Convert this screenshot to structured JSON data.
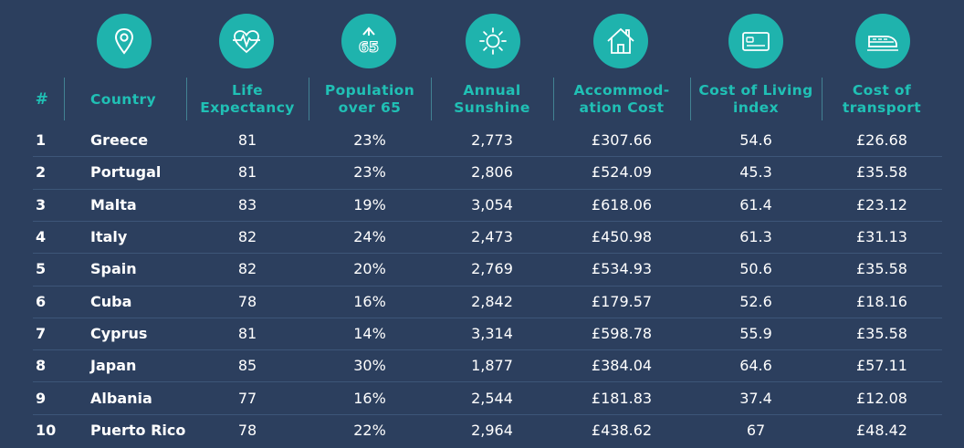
{
  "chart_data": {
    "type": "table",
    "columns": [
      "#",
      "Country",
      "Life Expectancy",
      "Population over 65",
      "Annual Sunshine",
      "Accommod-ation Cost",
      "Cost of Living index",
      "Cost of transport"
    ],
    "header_icons": [
      "location-pin-icon",
      "heartbeat-icon",
      "over-65-icon",
      "sun-icon",
      "house-icon",
      "credit-card-icon",
      "train-icon"
    ],
    "rows": [
      [
        "1",
        "Greece",
        "81",
        "23%",
        "2,773",
        "£307.66",
        "54.6",
        "£26.68"
      ],
      [
        "2",
        "Portugal",
        "81",
        "23%",
        "2,806",
        "£524.09",
        "45.3",
        "£35.58"
      ],
      [
        "3",
        "Malta",
        "83",
        "19%",
        "3,054",
        "£618.06",
        "61.4",
        "£23.12"
      ],
      [
        "4",
        "Italy",
        "82",
        "24%",
        "2,473",
        "£450.98",
        "61.3",
        "£31.13"
      ],
      [
        "5",
        "Spain",
        "82",
        "20%",
        "2,769",
        "£534.93",
        "50.6",
        "£35.58"
      ],
      [
        "6",
        "Cuba",
        "78",
        "16%",
        "2,842",
        "£179.57",
        "52.6",
        "£18.16"
      ],
      [
        "7",
        "Cyprus",
        "81",
        "14%",
        "3,314",
        "£598.78",
        "55.9",
        "£35.58"
      ],
      [
        "8",
        "Japan",
        "85",
        "30%",
        "1,877",
        "£384.04",
        "64.6",
        "£57.11"
      ],
      [
        "9",
        "Albania",
        "77",
        "16%",
        "2,544",
        "£181.83",
        "37.4",
        "£12.08"
      ],
      [
        "10",
        "Puerto Rico",
        "78",
        "22%",
        "2,964",
        "£438.62",
        "67",
        "£48.42"
      ]
    ],
    "colors": {
      "background": "#2c3f5e",
      "accent": "#1fb3ad",
      "header_text": "#20c0b5",
      "text": "#ffffff",
      "row_separator": "#3d5678"
    }
  },
  "icons": {
    "over65_label": "65"
  }
}
